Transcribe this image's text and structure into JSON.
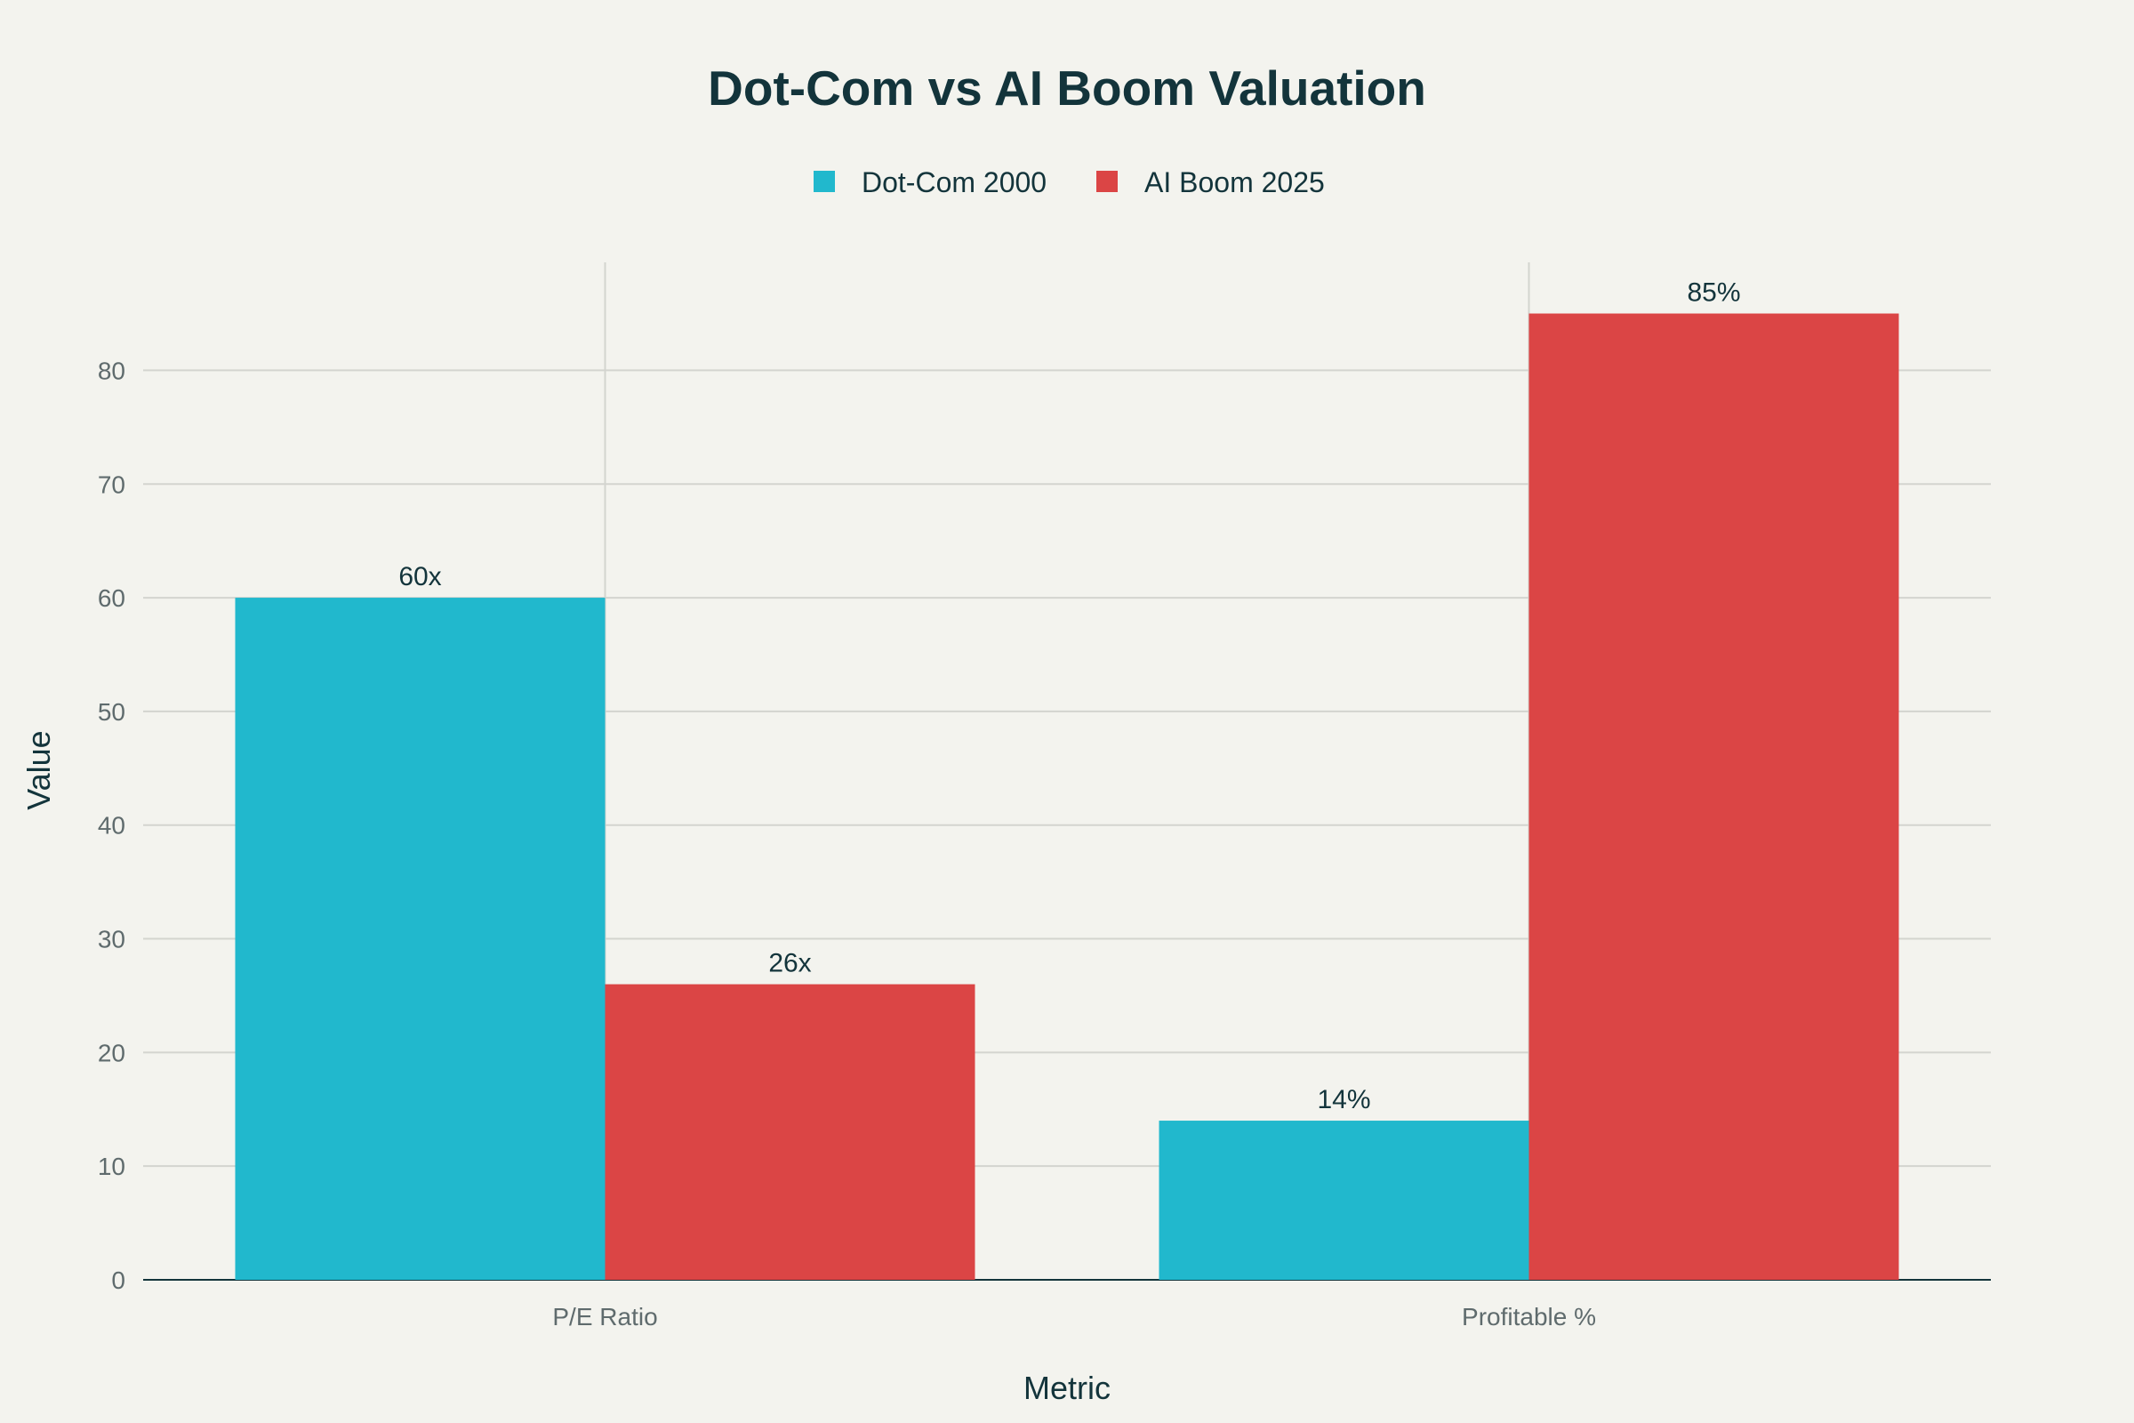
{
  "chart_data": {
    "type": "bar",
    "title": "Dot-Com vs AI Boom Valuation",
    "xlabel": "Metric",
    "ylabel": "Value",
    "categories": [
      "P/E Ratio",
      "Profitable %"
    ],
    "series": [
      {
        "name": "Dot-Com 2000",
        "color": "#21b8cd",
        "values": [
          60,
          14
        ],
        "labels": [
          "60x",
          "14%"
        ]
      },
      {
        "name": "AI Boom 2025",
        "color": "#db4545",
        "values": [
          26,
          85
        ],
        "labels": [
          "26x",
          "85%"
        ]
      }
    ],
    "ylim": [
      0,
      89.5
    ],
    "yticks": [
      0,
      10,
      20,
      30,
      40,
      50,
      60,
      70,
      80
    ],
    "grid": true,
    "legend": "top-center"
  }
}
